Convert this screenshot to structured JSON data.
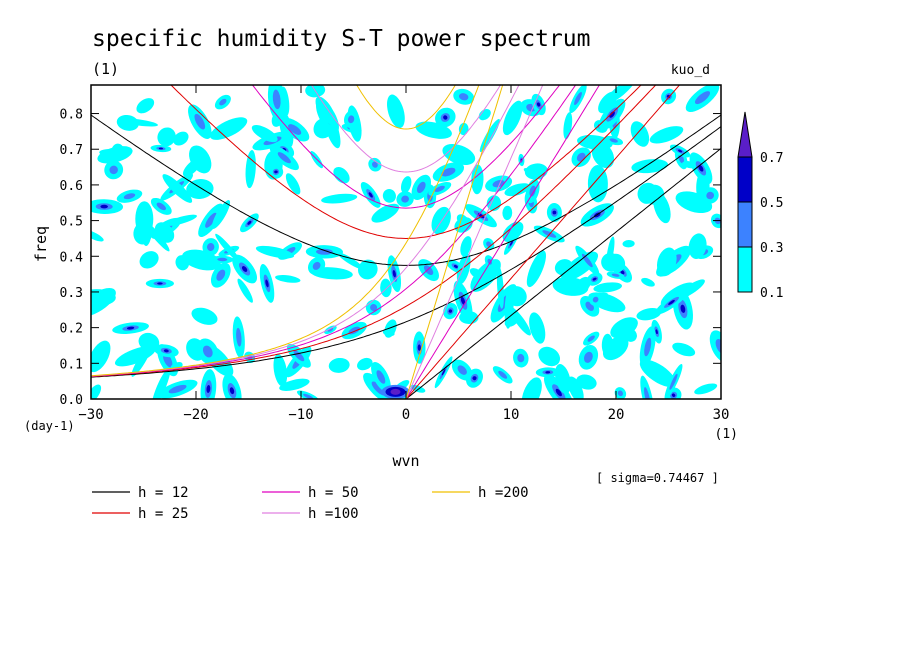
{
  "chart_data": {
    "type": "heatmap",
    "title": "specific humidity S-T power spectrum",
    "subtitle_left": "(1)",
    "subtitle_right": "kuo_d",
    "xlabel": "wvn",
    "ylabel": "freq",
    "x_unit": "(1)",
    "y_unit": "(day-1)",
    "xlim": [
      -30,
      30
    ],
    "ylim": [
      0,
      0.88
    ],
    "x_ticks": [
      -30,
      -20,
      -10,
      0,
      10,
      20,
      30
    ],
    "x_tick_labels": [
      "−30",
      "−20",
      "−10",
      "0",
      "10",
      "20",
      "30"
    ],
    "y_ticks": [
      0,
      0.1,
      0.2,
      0.3,
      0.4,
      0.5,
      0.6,
      0.7,
      0.8
    ],
    "y_tick_labels": [
      "0.0",
      "0.1",
      "0.2",
      "0.3",
      "0.4",
      "0.5",
      "0.6",
      "0.7",
      "0.8"
    ],
    "colorbar": {
      "levels": [
        0.1,
        0.3,
        0.5,
        0.7
      ],
      "labels": [
        "0.1",
        "0.3",
        "0.5",
        "0.7"
      ],
      "colors": [
        "#00ffff",
        "#3c82ff",
        "#0000c8",
        "#5a1ec8"
      ]
    },
    "sigma_text": "[ sigma=0.74467 ]",
    "dispersion_curves": [
      {
        "label": "h = 12",
        "h": 12,
        "color": "#000000"
      },
      {
        "label": "h = 25",
        "h": 25,
        "color": "#e00000"
      },
      {
        "label": "h = 50",
        "h": 50,
        "color": "#e000c0"
      },
      {
        "label": "h =100",
        "h": 100,
        "color": "#e080e0"
      },
      {
        "label": "h =200",
        "h": 200,
        "color": "#f0c000"
      }
    ],
    "field_summary": {
      "description_level": "blobs of spectral power",
      "max_peak": {
        "x": -1,
        "y": 0.02,
        "value": 0.75
      }
    }
  }
}
